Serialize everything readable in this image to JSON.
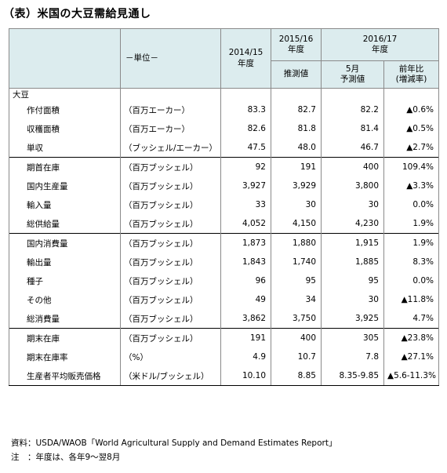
{
  "title": "（表）米国の大豆需給見通し",
  "header": {
    "unit_label": "－単位－",
    "col_2014": "2014/15\n年度",
    "col_2015_year": "2015/16\n年度",
    "col_2015_sub": "推測値",
    "col_2016_year": "2016/17\n年度",
    "col_2016_may": "5月\n予測値",
    "col_2016_yoy": "前年比\n(増減率)"
  },
  "category": "大豆",
  "rows": [
    {
      "name": "作付面積",
      "unit": "（百万エーカー）",
      "v1": "83.3",
      "v2": "82.7",
      "v3": "82.2",
      "v4": "▲0.6%"
    },
    {
      "name": "収穫面積",
      "unit": "（百万エーカー）",
      "v1": "82.6",
      "v2": "81.8",
      "v3": "81.4",
      "v4": "▲0.5%"
    },
    {
      "name": "単収",
      "unit": "（ブッシェル/エーカー）",
      "v1": "47.5",
      "v2": "48.0",
      "v3": "46.7",
      "v4": "▲2.7%"
    },
    {
      "name": "期首在庫",
      "unit": "（百万ブッシェル）",
      "v1": "92",
      "v2": "191",
      "v3": "400",
      "v4": "109.4%"
    },
    {
      "name": "国内生産量",
      "unit": "（百万ブッシェル）",
      "v1": "3,927",
      "v2": "3,929",
      "v3": "3,800",
      "v4": "▲3.3%"
    },
    {
      "name": "輸入量",
      "unit": "（百万ブッシェル）",
      "v1": "33",
      "v2": "30",
      "v3": "30",
      "v4": "0.0%"
    },
    {
      "name": "総供給量",
      "unit": "（百万ブッシェル）",
      "v1": "4,052",
      "v2": "4,150",
      "v3": "4,230",
      "v4": "1.9%"
    },
    {
      "name": "国内消費量",
      "unit": "（百万ブッシェル）",
      "v1": "1,873",
      "v2": "1,880",
      "v3": "1,915",
      "v4": "1.9%"
    },
    {
      "name": "輸出量",
      "unit": "（百万ブッシェル）",
      "v1": "1,843",
      "v2": "1,740",
      "v3": "1,885",
      "v4": "8.3%"
    },
    {
      "name": "種子",
      "unit": "（百万ブッシェル）",
      "v1": "96",
      "v2": "95",
      "v3": "95",
      "v4": "0.0%"
    },
    {
      "name": "その他",
      "unit": "（百万ブッシェル）",
      "v1": "49",
      "v2": "34",
      "v3": "30",
      "v4": "▲11.8%"
    },
    {
      "name": "総消費量",
      "unit": "（百万ブッシェル）",
      "v1": "3,862",
      "v2": "3,750",
      "v3": "3,925",
      "v4": "4.7%"
    },
    {
      "name": "期末在庫",
      "unit": "（百万ブッシェル）",
      "v1": "191",
      "v2": "400",
      "v3": "305",
      "v4": "▲23.8%"
    },
    {
      "name": "期末在庫率",
      "unit": "（%）",
      "v1": "4.9",
      "v2": "10.7",
      "v3": "7.8",
      "v4": "▲27.1%"
    },
    {
      "name": "生産者平均販売価格",
      "unit": "（米ドル/ブッシェル）",
      "v1": "10.10",
      "v2": "8.85",
      "v3": "8.35-9.85",
      "v4": "▲5.6-11.3%"
    }
  ],
  "notes": {
    "source": "資料：USDA/WAOB「World Agricultural Supply and Demand Estimates Report」",
    "note": "注　：年度は、各年9～翌8月"
  }
}
